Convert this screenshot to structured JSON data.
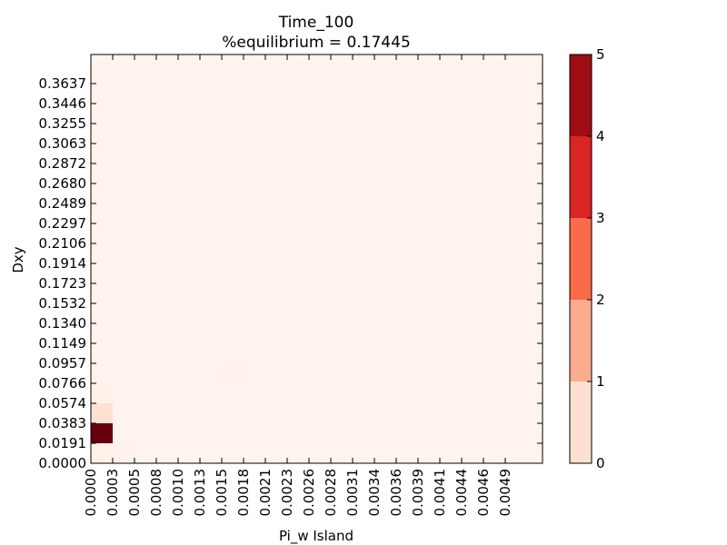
{
  "chart_data": {
    "type": "heatmap",
    "title": "Time_100",
    "subtitle": "%equilibrium = 0.17445",
    "xlabel": "Pi_w Island",
    "ylabel": "Dxy",
    "x_tick_labels": [
      "0.0000",
      "0.0003",
      "0.0005",
      "0.0008",
      "0.0010",
      "0.0013",
      "0.0015",
      "0.0018",
      "0.0021",
      "0.0023",
      "0.0026",
      "0.0028",
      "0.0031",
      "0.0034",
      "0.0036",
      "0.0039",
      "0.0041",
      "0.0044",
      "0.0046",
      "0.0049"
    ],
    "y_tick_labels": [
      "0.0000",
      "0.0191",
      "0.0383",
      "0.0574",
      "0.0766",
      "0.0957",
      "0.1149",
      "0.1340",
      "0.1532",
      "0.1723",
      "0.1914",
      "0.2106",
      "0.2297",
      "0.2489",
      "0.2680",
      "0.2872",
      "0.3063",
      "0.3255",
      "0.3446",
      "0.3637"
    ],
    "n_x": 20,
    "n_y": 20,
    "background_value": 0.05,
    "cells": [
      {
        "xi": 0,
        "yi": 1,
        "value": 5.0
      },
      {
        "xi": 0,
        "yi": 2,
        "value": 0.6
      },
      {
        "xi": 0,
        "yi": 0,
        "value": 0.15
      },
      {
        "xi": 0,
        "yi": 3,
        "value": 0.12
      },
      {
        "xi": 1,
        "yi": 0,
        "value": 0.1
      },
      {
        "xi": 6,
        "yi": 4,
        "value": 0.09
      }
    ],
    "colorbar": {
      "min": 0,
      "max": 5,
      "tick_labels": [
        "0",
        "1",
        "2",
        "3",
        "4",
        "5"
      ],
      "levels": [
        {
          "from": 0,
          "to": 1,
          "color": "#fee0d2"
        },
        {
          "from": 1,
          "to": 2,
          "color": "#fcab8f"
        },
        {
          "from": 2,
          "to": 3,
          "color": "#fb6a4a"
        },
        {
          "from": 3,
          "to": 4,
          "color": "#d92523"
        },
        {
          "from": 4,
          "to": 5,
          "color": "#9c0d14"
        }
      ]
    }
  }
}
